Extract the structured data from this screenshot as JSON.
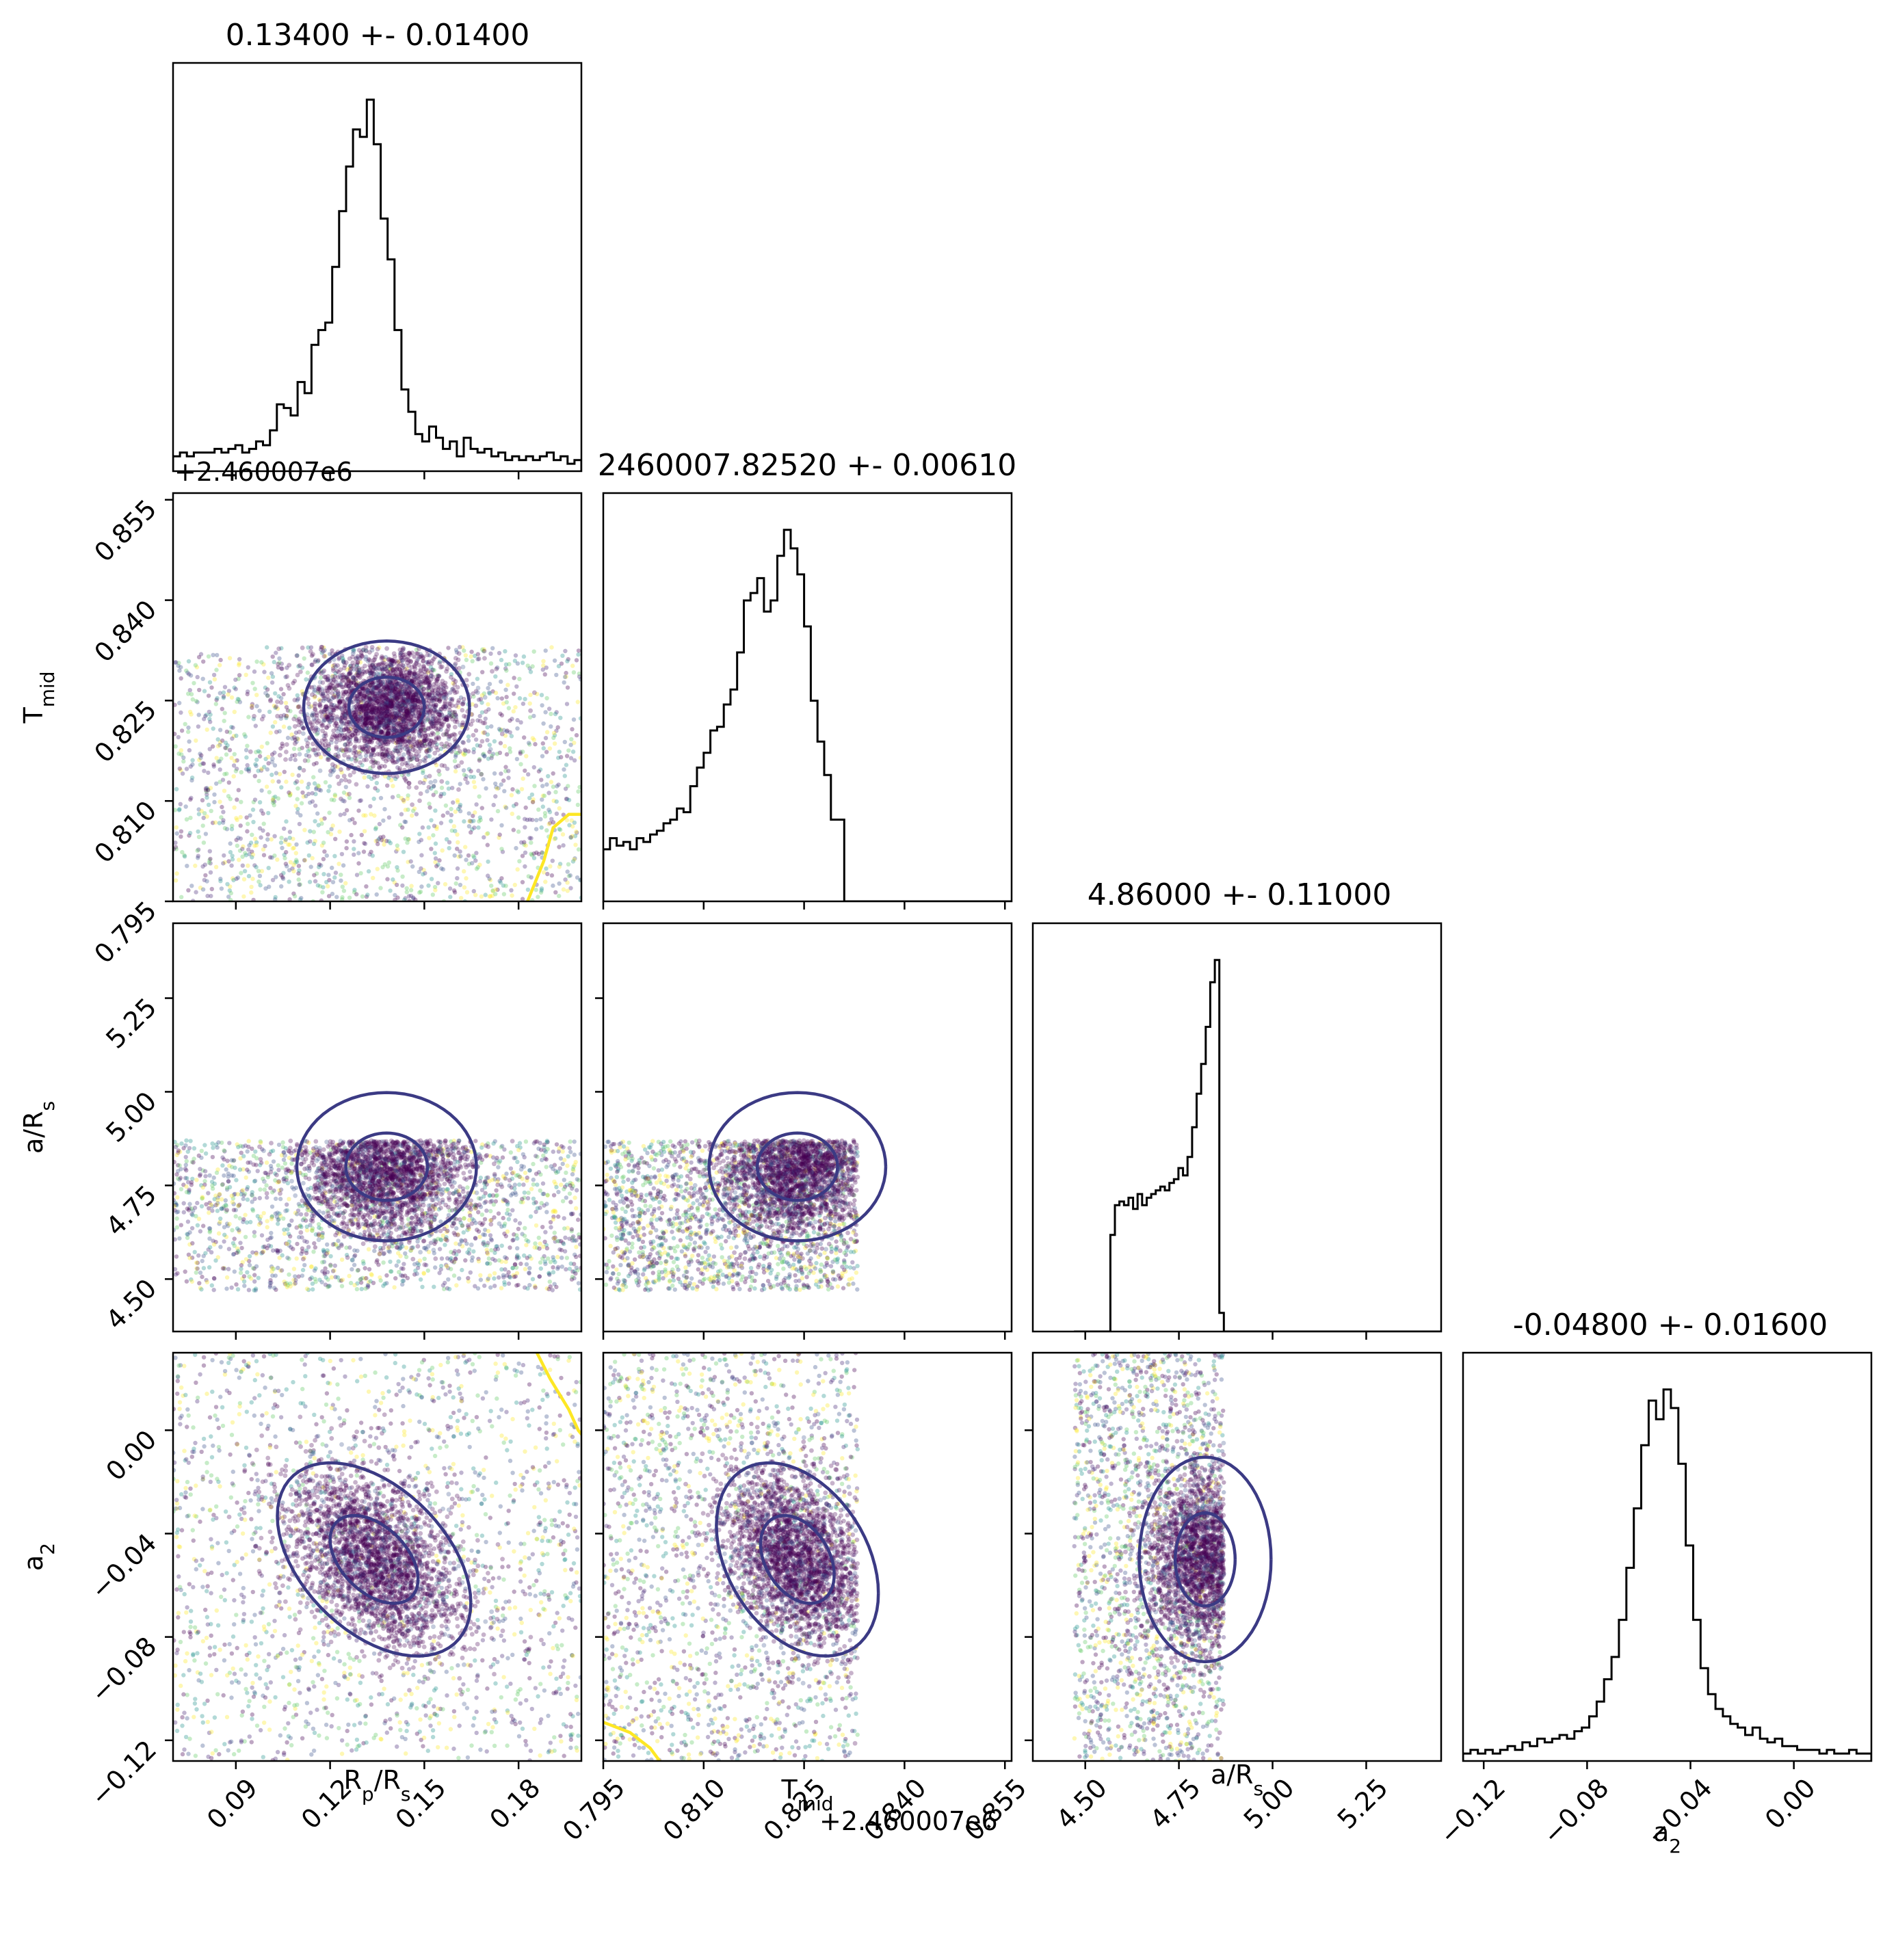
{
  "chart_data": {
    "type": "corner",
    "parameters": [
      {
        "key": "rp",
        "label": "R",
        "sub": "p",
        "mid": "/R",
        "sub2": "s",
        "range": [
          0.07,
          0.2
        ],
        "ticks": [
          "0.09",
          "0.12",
          "0.15",
          "0.18"
        ],
        "tick_values": [
          0.09,
          0.12,
          0.15,
          0.18
        ]
      },
      {
        "key": "tmid",
        "label": "T",
        "sub": "mid",
        "mid": "",
        "sub2": "",
        "range": [
          0.795,
          0.856
        ],
        "ticks": [
          "0.795",
          "0.810",
          "0.825",
          "0.840",
          "0.855"
        ],
        "tick_values": [
          0.795,
          0.81,
          0.825,
          0.84,
          0.855
        ],
        "offset": "+2.460007e6"
      },
      {
        "key": "ars",
        "label": "a/R",
        "sub": "s",
        "mid": "",
        "sub2": "",
        "range": [
          4.36,
          5.45
        ],
        "ticks": [
          "4.50",
          "4.75",
          "5.00",
          "5.25"
        ],
        "tick_values": [
          4.5,
          4.75,
          5.0,
          5.25
        ]
      },
      {
        "key": "a2",
        "label": "a",
        "sub": "2",
        "mid": "",
        "sub2": "",
        "range": [
          -0.128,
          0.03
        ],
        "ticks": [
          "−0.12",
          "−0.08",
          "−0.04",
          "0.00"
        ],
        "tick_values": [
          -0.12,
          -0.08,
          -0.04,
          0.0
        ]
      }
    ],
    "titles": [
      "0.13400 +- 0.01400",
      "2460007.82520 +- 0.00610",
      "4.86000 +- 0.11000",
      "-0.04800 +- 0.01600"
    ],
    "histograms": [
      {
        "values": [
          0.04,
          0.05,
          0.04,
          0.05,
          0.05,
          0.05,
          0.06,
          0.05,
          0.06,
          0.07,
          0.05,
          0.06,
          0.08,
          0.07,
          0.11,
          0.18,
          0.17,
          0.15,
          0.24,
          0.21,
          0.34,
          0.38,
          0.4,
          0.55,
          0.7,
          0.82,
          0.92,
          0.9,
          1.0,
          0.88,
          0.68,
          0.57,
          0.38,
          0.22,
          0.16,
          0.1,
          0.08,
          0.12,
          0.09,
          0.06,
          0.08,
          0.04,
          0.09,
          0.06,
          0.05,
          0.06,
          0.04,
          0.05,
          0.03,
          0.04,
          0.03,
          0.04,
          0.03,
          0.04,
          0.05,
          0.03,
          0.04,
          0.02,
          0.03
        ]
      },
      {
        "values": [
          0.14,
          0.17,
          0.15,
          0.16,
          0.14,
          0.17,
          0.16,
          0.18,
          0.19,
          0.21,
          0.22,
          0.25,
          0.24,
          0.31,
          0.36,
          0.4,
          0.46,
          0.47,
          0.53,
          0.57,
          0.67,
          0.81,
          0.83,
          0.87,
          0.78,
          0.81,
          0.93,
          1.0,
          0.95,
          0.88,
          0.74,
          0.54,
          0.43,
          0.34,
          0.22,
          0.22,
          0.0,
          0.0,
          0.0,
          0.0,
          0.0,
          0.0,
          0.0,
          0.0,
          0.0,
          0.0,
          0.0,
          0.0,
          0.0,
          0.0,
          0.0,
          0.0,
          0.0,
          0.0,
          0.0,
          0.0,
          0.0,
          0.0,
          0.0,
          0.0,
          0.0
        ]
      },
      {
        "start": 4.47,
        "end": 4.87,
        "values": [
          0.0,
          0.0,
          0.0,
          0.0,
          0.0,
          0.0,
          0.0,
          0.0,
          0.26,
          0.34,
          0.35,
          0.34,
          0.36,
          0.33,
          0.37,
          0.34,
          0.36,
          0.37,
          0.38,
          0.39,
          0.38,
          0.4,
          0.41,
          0.44,
          0.42,
          0.47,
          0.55,
          0.64,
          0.72,
          0.82,
          0.94,
          1.0,
          0.05
        ]
      },
      {
        "values": [
          0.02,
          0.03,
          0.02,
          0.03,
          0.02,
          0.03,
          0.04,
          0.03,
          0.05,
          0.04,
          0.06,
          0.05,
          0.06,
          0.07,
          0.06,
          0.08,
          0.09,
          0.12,
          0.16,
          0.22,
          0.28,
          0.38,
          0.52,
          0.68,
          0.85,
          0.97,
          0.92,
          1.0,
          0.95,
          0.8,
          0.58,
          0.38,
          0.25,
          0.18,
          0.14,
          0.12,
          0.1,
          0.09,
          0.07,
          0.09,
          0.06,
          0.05,
          0.06,
          0.04,
          0.04,
          0.03,
          0.03,
          0.03,
          0.02,
          0.03,
          0.02,
          0.02,
          0.03,
          0.02,
          0.02
        ]
      }
    ],
    "scatter_2d": [
      {
        "row": 1,
        "col": 0,
        "x_center": 0.138,
        "y_center": 0.824,
        "x_sigma": 0.012,
        "y_sigma": 0.0045,
        "rho": 0.0,
        "x_clip": [
          0.07,
          0.2
        ],
        "y_clip": [
          0.795,
          0.833
        ]
      },
      {
        "row": 2,
        "col": 0,
        "x_center": 0.138,
        "y_center": 4.8,
        "x_sigma": 0.013,
        "y_sigma": 0.09,
        "rho": 0.0,
        "x_clip": [
          0.07,
          0.2
        ],
        "y_clip": [
          4.47,
          4.87
        ]
      },
      {
        "row": 2,
        "col": 1,
        "x_center": 0.824,
        "y_center": 4.8,
        "x_sigma": 0.006,
        "y_sigma": 0.09,
        "rho": 0.0,
        "x_clip": [
          0.795,
          0.833
        ],
        "y_clip": [
          4.47,
          4.87
        ]
      },
      {
        "row": 3,
        "col": 0,
        "x_center": 0.134,
        "y_center": -0.05,
        "x_sigma": 0.014,
        "y_sigma": 0.017,
        "rho": -0.45,
        "x_clip": [
          0.07,
          0.2
        ],
        "y_clip": [
          -0.128,
          0.03
        ]
      },
      {
        "row": 3,
        "col": 1,
        "x_center": 0.824,
        "y_center": -0.05,
        "x_sigma": 0.0055,
        "y_sigma": 0.017,
        "rho": -0.35,
        "x_clip": [
          0.795,
          0.833
        ],
        "y_clip": [
          -0.128,
          0.03
        ]
      },
      {
        "row": 3,
        "col": 2,
        "x_center": 4.82,
        "y_center": -0.05,
        "x_sigma": 0.08,
        "y_sigma": 0.018,
        "rho": 0.0,
        "x_clip": [
          4.47,
          4.87
        ],
        "y_clip": [
          -0.128,
          0.03
        ]
      }
    ],
    "colors": {
      "hist_line": "#000000",
      "contour": "#3b3a84",
      "contour_outer": "#fde725",
      "scatter_core": "#440154",
      "scatter_palette": [
        "#440154",
        "#3b528b",
        "#21918c",
        "#5ec962",
        "#fde725",
        "#482878"
      ]
    },
    "legend": "none",
    "grid": false
  }
}
